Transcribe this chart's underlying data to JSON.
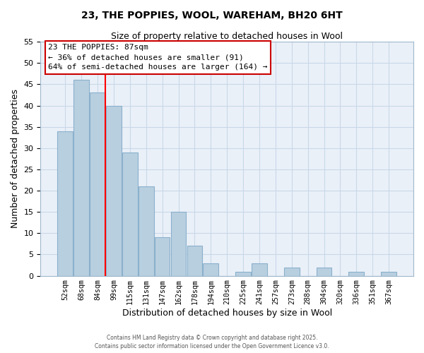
{
  "title": "23, THE POPPIES, WOOL, WAREHAM, BH20 6HT",
  "subtitle": "Size of property relative to detached houses in Wool",
  "xlabel": "Distribution of detached houses by size in Wool",
  "ylabel": "Number of detached properties",
  "bar_color": "#b8cfe0",
  "bar_edge_color": "#8ab0cc",
  "grid_color": "#c8d8e8",
  "background_color": "#eaf0f8",
  "categories": [
    "52sqm",
    "68sqm",
    "84sqm",
    "99sqm",
    "115sqm",
    "131sqm",
    "147sqm",
    "162sqm",
    "178sqm",
    "194sqm",
    "210sqm",
    "225sqm",
    "241sqm",
    "257sqm",
    "273sqm",
    "288sqm",
    "304sqm",
    "320sqm",
    "336sqm",
    "351sqm",
    "367sqm"
  ],
  "values": [
    34,
    46,
    43,
    40,
    29,
    21,
    9,
    15,
    7,
    3,
    0,
    1,
    3,
    0,
    2,
    0,
    2,
    0,
    1,
    0,
    1
  ],
  "ylim": [
    0,
    55
  ],
  "yticks": [
    0,
    5,
    10,
    15,
    20,
    25,
    30,
    35,
    40,
    45,
    50,
    55
  ],
  "property_line_x": 2.5,
  "annotation_title": "23 THE POPPIES: 87sqm",
  "annotation_line1": "← 36% of detached houses are smaller (91)",
  "annotation_line2": "64% of semi-detached houses are larger (164) →",
  "footer_line1": "Contains HM Land Registry data © Crown copyright and database right 2025.",
  "footer_line2": "Contains public sector information licensed under the Open Government Licence v3.0."
}
